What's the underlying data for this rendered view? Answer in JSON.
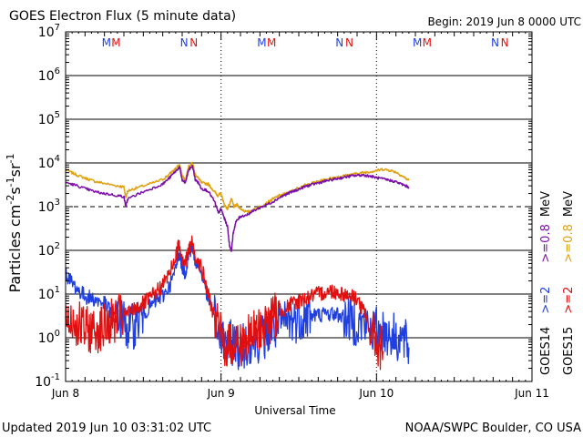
{
  "header": {
    "title": "GOES Electron Flux (5 minute data)",
    "begin": "Begin: 2019 Jun 8 0000 UTC"
  },
  "footer": {
    "updated": "Updated 2019 Jun 10 03:31:02 UTC",
    "credit": "NOAA/SWPC Boulder, CO USA"
  },
  "chart_data": {
    "type": "line",
    "title": "GOES Electron Flux (5 minute data)",
    "xlabel": "Universal Time",
    "ylabel_parts": [
      "Particles cm",
      "-2",
      "s",
      "-1",
      "sr",
      "-1"
    ],
    "yscale": "log",
    "ylim_exp": [
      -1,
      7
    ],
    "y_ticks": [
      {
        "exp": -1,
        "base": "10",
        "sup": "-1"
      },
      {
        "exp": 0,
        "base": "10",
        "sup": "0"
      },
      {
        "exp": 1,
        "base": "10",
        "sup": "1"
      },
      {
        "exp": 2,
        "base": "10",
        "sup": "2"
      },
      {
        "exp": 3,
        "base": "10",
        "sup": "3"
      },
      {
        "exp": 4,
        "base": "10",
        "sup": "4"
      },
      {
        "exp": 5,
        "base": "10",
        "sup": "5"
      },
      {
        "exp": 6,
        "base": "10",
        "sup": "6"
      },
      {
        "exp": 7,
        "base": "10",
        "sup": "7"
      }
    ],
    "x_range_hours": [
      0,
      72
    ],
    "x_ticks": [
      {
        "hour": 0,
        "label": "Jun 8"
      },
      {
        "hour": 24,
        "label": "Jun 9"
      },
      {
        "hour": 48,
        "label": "Jun 10"
      },
      {
        "hour": 72,
        "label": "Jun 11"
      }
    ],
    "alert_threshold": 1000,
    "day_boundaries_hours": [
      24,
      48
    ],
    "mn_markers": [
      {
        "hour": 6.3,
        "letter": "M",
        "sat": "GOES14"
      },
      {
        "hour": 7.8,
        "letter": "M",
        "sat": "GOES15"
      },
      {
        "hour": 18.3,
        "letter": "N",
        "sat": "GOES14"
      },
      {
        "hour": 19.8,
        "letter": "N",
        "sat": "GOES15"
      },
      {
        "hour": 30.3,
        "letter": "M",
        "sat": "GOES14"
      },
      {
        "hour": 31.8,
        "letter": "M",
        "sat": "GOES15"
      },
      {
        "hour": 42.3,
        "letter": "N",
        "sat": "GOES14"
      },
      {
        "hour": 43.8,
        "letter": "N",
        "sat": "GOES15"
      },
      {
        "hour": 54.3,
        "letter": "M",
        "sat": "GOES14"
      },
      {
        "hour": 55.8,
        "letter": "M",
        "sat": "GOES15"
      },
      {
        "hour": 66.3,
        "letter": "N",
        "sat": "GOES14"
      },
      {
        "hour": 67.8,
        "letter": "N",
        "sat": "GOES15"
      }
    ],
    "legend": {
      "goes14": {
        "sat": "GOES14",
        "items": [
          {
            "text": ">=2",
            "color": "#1f3fe0"
          },
          {
            "text": ">=0.8",
            "color": "#7a0fa8"
          }
        ]
      },
      "goes15": {
        "sat": "GOES15",
        "items": [
          {
            "text": ">=2",
            "color": "#e01010"
          },
          {
            "text": ">=0.8",
            "color": "#e0a010"
          }
        ]
      },
      "unit": "MeV"
    },
    "series": [
      {
        "name": "GOES15 >=0.8 MeV",
        "color": "#e0a010",
        "points": [
          [
            0,
            7000
          ],
          [
            1.5,
            5500
          ],
          [
            3,
            4500
          ],
          [
            4.5,
            3800
          ],
          [
            6,
            3400
          ],
          [
            8,
            3000
          ],
          [
            9,
            2800
          ],
          [
            9.3,
            1600
          ],
          [
            9.6,
            2300
          ],
          [
            11,
            2700
          ],
          [
            13,
            3300
          ],
          [
            15,
            4200
          ],
          [
            16,
            5500
          ],
          [
            17,
            7500
          ],
          [
            17.6,
            9000
          ],
          [
            18,
            5200
          ],
          [
            18.5,
            4000
          ],
          [
            19,
            8500
          ],
          [
            19.6,
            10000
          ],
          [
            20,
            5500
          ],
          [
            20.5,
            4500
          ],
          [
            21,
            3500
          ],
          [
            22,
            3300
          ],
          [
            23,
            2200
          ],
          [
            23.5,
            1800
          ],
          [
            24,
            2000
          ],
          [
            24.5,
            1100
          ],
          [
            25,
            900
          ],
          [
            25.6,
            1500
          ],
          [
            26,
            1000
          ],
          [
            26.5,
            1100
          ],
          [
            27,
            900
          ],
          [
            28,
            750
          ],
          [
            29,
            850
          ],
          [
            30,
            1000
          ],
          [
            31,
            1200
          ],
          [
            32,
            1500
          ],
          [
            33,
            1800
          ],
          [
            34,
            2000
          ],
          [
            35,
            2300
          ],
          [
            36,
            2700
          ],
          [
            37,
            3100
          ],
          [
            38,
            3400
          ],
          [
            39,
            3800
          ],
          [
            40,
            4100
          ],
          [
            41,
            4500
          ],
          [
            42,
            4800
          ],
          [
            43,
            5100
          ],
          [
            44,
            5400
          ],
          [
            45,
            5700
          ],
          [
            46,
            6000
          ],
          [
            47,
            6300
          ],
          [
            48,
            6700
          ],
          [
            49,
            7200
          ],
          [
            50,
            6800
          ],
          [
            51,
            6200
          ],
          [
            52,
            5000
          ],
          [
            53,
            4000
          ]
        ]
      },
      {
        "name": "GOES14 >=0.8 MeV",
        "color": "#7a0fa8",
        "points": [
          [
            0,
            3600
          ],
          [
            1.5,
            3100
          ],
          [
            3,
            2600
          ],
          [
            4.5,
            2200
          ],
          [
            6,
            2000
          ],
          [
            8,
            1800
          ],
          [
            9,
            1700
          ],
          [
            9.3,
            1000
          ],
          [
            9.6,
            1500
          ],
          [
            11,
            1900
          ],
          [
            13,
            2500
          ],
          [
            15,
            3300
          ],
          [
            16,
            4500
          ],
          [
            17,
            6500
          ],
          [
            17.6,
            8000
          ],
          [
            18,
            4000
          ],
          [
            18.5,
            3500
          ],
          [
            19,
            7000
          ],
          [
            19.6,
            8500
          ],
          [
            20,
            4200
          ],
          [
            20.5,
            3500
          ],
          [
            21,
            2600
          ],
          [
            22,
            2300
          ],
          [
            23,
            1300
          ],
          [
            23.6,
            700
          ],
          [
            24,
            900
          ],
          [
            24.4,
            600
          ],
          [
            25,
            350
          ],
          [
            25.3,
            130
          ],
          [
            25.6,
            100
          ],
          [
            25.9,
            260
          ],
          [
            26.3,
            450
          ],
          [
            27,
            600
          ],
          [
            28,
            650
          ],
          [
            29,
            800
          ],
          [
            30,
            950
          ],
          [
            31,
            1100
          ],
          [
            32,
            1300
          ],
          [
            33,
            1600
          ],
          [
            34,
            1900
          ],
          [
            35,
            2200
          ],
          [
            36,
            2500
          ],
          [
            37,
            2900
          ],
          [
            38,
            3200
          ],
          [
            39,
            3500
          ],
          [
            40,
            3800
          ],
          [
            41,
            4100
          ],
          [
            42,
            4400
          ],
          [
            43,
            4700
          ],
          [
            44,
            5000
          ],
          [
            45,
            5200
          ],
          [
            46,
            5300
          ],
          [
            47,
            5000
          ],
          [
            48,
            4600
          ],
          [
            49,
            4300
          ],
          [
            50,
            4000
          ],
          [
            51,
            3700
          ],
          [
            52,
            3200
          ],
          [
            53,
            2800
          ]
        ]
      },
      {
        "name": "GOES14 >=2 MeV",
        "color": "#1f3fe0",
        "points": [
          [
            0,
            30
          ],
          [
            1,
            18
          ],
          [
            2,
            12
          ],
          [
            3,
            9
          ],
          [
            4,
            8
          ],
          [
            5,
            7
          ],
          [
            6,
            6
          ],
          [
            7,
            4
          ],
          [
            8,
            3
          ],
          [
            9,
            2.2
          ],
          [
            10,
            1.5
          ],
          [
            11,
            2.5
          ],
          [
            12,
            3.5
          ],
          [
            13,
            5
          ],
          [
            14,
            7
          ],
          [
            15,
            9
          ],
          [
            16,
            15
          ],
          [
            17,
            35
          ],
          [
            17.5,
            100
          ],
          [
            18,
            45
          ],
          [
            18.5,
            30
          ],
          [
            19,
            80
          ],
          [
            19.5,
            130
          ],
          [
            20,
            60
          ],
          [
            21,
            30
          ],
          [
            22,
            8
          ],
          [
            23,
            3
          ],
          [
            24,
            1.0
          ],
          [
            25,
            0.6
          ],
          [
            26,
            0.9
          ],
          [
            27,
            0.5
          ],
          [
            28,
            0.8
          ],
          [
            29,
            1.0
          ],
          [
            30,
            0.9
          ],
          [
            31,
            1.2
          ],
          [
            32,
            1.5
          ],
          [
            33,
            1.8
          ],
          [
            34,
            2.2
          ],
          [
            35,
            2.5
          ],
          [
            36,
            2.8
          ],
          [
            37,
            3.0
          ],
          [
            38,
            3.2
          ],
          [
            39,
            3.4
          ],
          [
            40,
            3.5
          ],
          [
            41,
            3.6
          ],
          [
            42,
            3.4
          ],
          [
            43,
            3.0
          ],
          [
            44,
            2.5
          ],
          [
            45,
            2.2
          ],
          [
            46,
            2.0
          ],
          [
            47,
            1.6
          ],
          [
            48,
            1.5
          ],
          [
            49,
            1.4
          ],
          [
            50,
            1.2
          ],
          [
            51,
            1.0
          ],
          [
            52,
            0.9
          ],
          [
            53,
            0.6
          ]
        ]
      },
      {
        "name": "GOES15 >=2 MeV",
        "color": "#e01010",
        "points": [
          [
            0,
            3
          ],
          [
            1,
            2.5
          ],
          [
            2,
            2
          ],
          [
            3,
            1.5
          ],
          [
            4,
            1.5
          ],
          [
            5,
            1.6
          ],
          [
            6,
            1.8
          ],
          [
            7,
            2.2
          ],
          [
            8,
            2.8
          ],
          [
            9,
            3.2
          ],
          [
            10,
            4
          ],
          [
            11,
            5
          ],
          [
            12,
            6
          ],
          [
            13,
            8
          ],
          [
            14,
            11
          ],
          [
            15,
            16
          ],
          [
            16,
            30
          ],
          [
            17,
            70
          ],
          [
            17.5,
            150
          ],
          [
            18,
            70
          ],
          [
            18.5,
            50
          ],
          [
            19,
            100
          ],
          [
            19.5,
            150
          ],
          [
            20,
            80
          ],
          [
            21,
            40
          ],
          [
            22,
            10
          ],
          [
            23,
            3
          ],
          [
            24,
            1.0
          ],
          [
            25,
            0.6
          ],
          [
            26,
            0.8
          ],
          [
            27,
            0.7
          ],
          [
            28,
            0.9
          ],
          [
            29,
            1.2
          ],
          [
            30,
            1.6
          ],
          [
            31,
            2.2
          ],
          [
            32,
            3.0
          ],
          [
            33,
            3.8
          ],
          [
            34,
            4.8
          ],
          [
            35,
            6.0
          ],
          [
            36,
            7.0
          ],
          [
            37,
            8.0
          ],
          [
            38,
            9.0
          ],
          [
            39,
            10
          ],
          [
            40,
            11
          ],
          [
            41,
            12
          ],
          [
            42,
            11
          ],
          [
            43,
            10
          ],
          [
            44,
            9
          ],
          [
            45,
            8
          ],
          [
            46,
            4
          ],
          [
            47,
            1.5
          ],
          [
            48,
            0.8
          ],
          [
            49,
            0.5
          ]
        ]
      }
    ]
  }
}
